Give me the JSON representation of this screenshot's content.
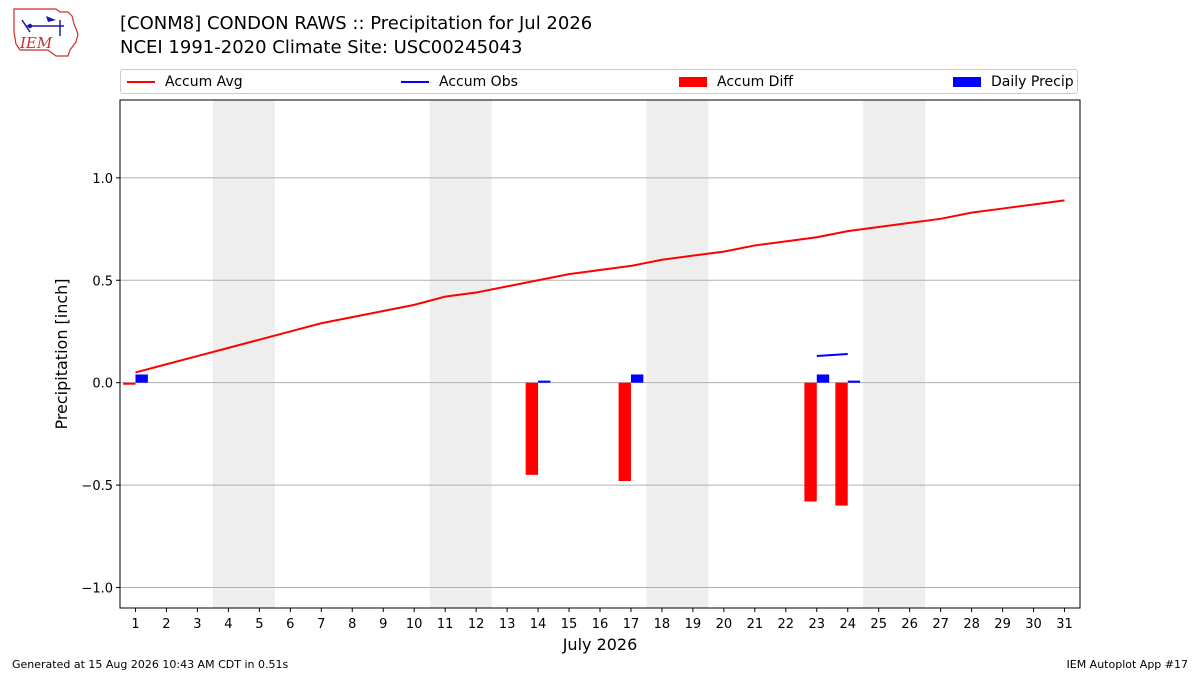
{
  "header": {
    "title_line1": "[CONM8] CONDON RAWS :: Precipitation for Jul 2026",
    "title_line2": "NCEI 1991-2020 Climate Site: USC00245043",
    "logo_text": "IEM"
  },
  "footer": {
    "left": "Generated at 15 Aug 2026 10:43 AM CDT in 0.51s",
    "right": "IEM Autoplot App #17"
  },
  "legend": {
    "accum_avg": "Accum Avg",
    "accum_obs": "Accum Obs",
    "accum_diff": "Accum Diff",
    "daily_precip": "Daily Precip"
  },
  "chart_data": {
    "type": "bar",
    "xlabel": "July 2026",
    "ylabel": "Precipitation [inch]",
    "xlim": [
      0.5,
      31.5
    ],
    "ylim": [
      -1.1,
      1.38
    ],
    "yticks": [
      -1.0,
      -0.5,
      0.0,
      0.5,
      1.0
    ],
    "ytick_labels": [
      "−1.0",
      "−0.5",
      "0.0",
      "0.5",
      "1.0"
    ],
    "xticks": [
      1,
      2,
      3,
      4,
      5,
      6,
      7,
      8,
      9,
      10,
      11,
      12,
      13,
      14,
      15,
      16,
      17,
      18,
      19,
      20,
      21,
      22,
      23,
      24,
      25,
      26,
      27,
      28,
      29,
      30,
      31
    ],
    "grid": "y",
    "legend_position": "top",
    "weekend_shading": [
      [
        4,
        5
      ],
      [
        11,
        12
      ],
      [
        18,
        19
      ],
      [
        25,
        26
      ]
    ],
    "series": [
      {
        "name": "Accum Avg",
        "kind": "line",
        "color": "#ff0000",
        "x": [
          1,
          2,
          3,
          4,
          5,
          6,
          7,
          8,
          9,
          10,
          11,
          12,
          13,
          14,
          15,
          16,
          17,
          18,
          19,
          20,
          21,
          22,
          23,
          24,
          25,
          26,
          27,
          28,
          29,
          30,
          31
        ],
        "values": [
          0.05,
          0.09,
          0.13,
          0.17,
          0.21,
          0.25,
          0.29,
          0.32,
          0.35,
          0.38,
          0.42,
          0.44,
          0.47,
          0.5,
          0.53,
          0.55,
          0.57,
          0.6,
          0.62,
          0.64,
          0.67,
          0.69,
          0.71,
          0.74,
          0.76,
          0.78,
          0.8,
          0.83,
          0.85,
          0.87,
          0.89
        ]
      },
      {
        "name": "Accum Obs",
        "kind": "line",
        "color": "#0000ff",
        "x": [
          23,
          24
        ],
        "values": [
          0.13,
          0.14
        ]
      },
      {
        "name": "Accum Diff",
        "kind": "bar",
        "color": "#ff0000",
        "x": [
          1,
          14,
          17,
          23,
          24
        ],
        "values": [
          -0.01,
          -0.45,
          -0.48,
          -0.58,
          -0.6
        ]
      },
      {
        "name": "Daily Precip",
        "kind": "bar",
        "color": "#0000ff",
        "x": [
          1,
          14,
          17,
          23,
          24
        ],
        "values": [
          0.04,
          0.01,
          0.04,
          0.04,
          0.01
        ]
      }
    ]
  },
  "colors": {
    "weekend_shade": "#eeeeee",
    "grid": "#b0b0b0"
  }
}
